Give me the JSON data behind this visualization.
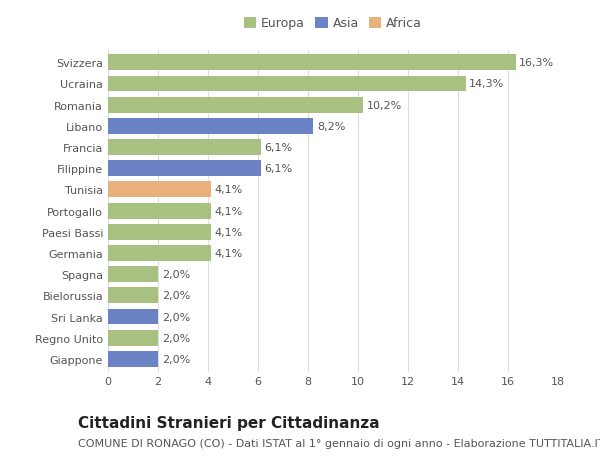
{
  "categories": [
    "Giappone",
    "Regno Unito",
    "Sri Lanka",
    "Bielorussia",
    "Spagna",
    "Germania",
    "Paesi Bassi",
    "Portogallo",
    "Tunisia",
    "Filippine",
    "Francia",
    "Libano",
    "Romania",
    "Ucraina",
    "Svizzera"
  ],
  "values": [
    2.0,
    2.0,
    2.0,
    2.0,
    2.0,
    4.1,
    4.1,
    4.1,
    4.1,
    6.1,
    6.1,
    8.2,
    10.2,
    14.3,
    16.3
  ],
  "labels": [
    "2,0%",
    "2,0%",
    "2,0%",
    "2,0%",
    "2,0%",
    "4,1%",
    "4,1%",
    "4,1%",
    "4,1%",
    "6,1%",
    "6,1%",
    "8,2%",
    "10,2%",
    "14,3%",
    "16,3%"
  ],
  "colors": [
    "#6b82c4",
    "#a8c080",
    "#6b82c4",
    "#a8c080",
    "#a8c080",
    "#a8c080",
    "#a8c080",
    "#a8c080",
    "#e8b07a",
    "#6b82c4",
    "#a8c080",
    "#6b82c4",
    "#a8c080",
    "#a8c080",
    "#a8c080"
  ],
  "legend_labels": [
    "Europa",
    "Asia",
    "Africa"
  ],
  "legend_colors": [
    "#a8c080",
    "#6b82c4",
    "#e8b07a"
  ],
  "title": "Cittadini Stranieri per Cittadinanza",
  "subtitle": "COMUNE DI RONAGO (CO) - Dati ISTAT al 1° gennaio di ogni anno - Elaborazione TUTTITALIA.IT",
  "xlim": [
    0,
    18
  ],
  "xticks": [
    0,
    2,
    4,
    6,
    8,
    10,
    12,
    14,
    16,
    18
  ],
  "background_color": "#ffffff",
  "grid_color": "#dddddd",
  "bar_height": 0.75,
  "label_fontsize": 8,
  "title_fontsize": 11,
  "subtitle_fontsize": 8,
  "legend_fontsize": 9,
  "tick_fontsize": 8
}
